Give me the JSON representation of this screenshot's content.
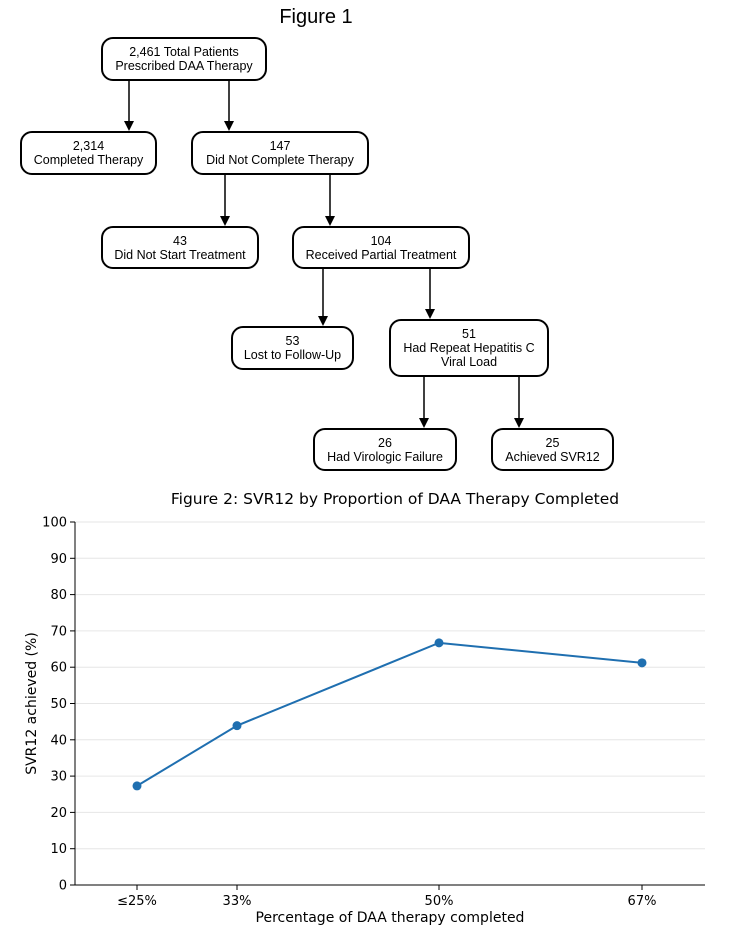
{
  "figure1": {
    "title": "Figure 1",
    "nodes": [
      {
        "id": "total",
        "count": "2,461",
        "label": "Total Patients Prescribed DAA Therapy",
        "lines": [
          "2,461 Total Patients",
          "Prescribed DAA Therapy"
        ]
      },
      {
        "id": "completed",
        "count": "2,314",
        "label": "Completed Therapy",
        "lines": [
          "2,314",
          "Completed Therapy"
        ]
      },
      {
        "id": "not_completed",
        "count": "147",
        "label": "Did Not Complete Therapy",
        "lines": [
          "147",
          "Did Not Complete Therapy"
        ]
      },
      {
        "id": "not_started",
        "count": "43",
        "label": "Did Not Start Treatment",
        "lines": [
          "43",
          "Did Not Start Treatment"
        ]
      },
      {
        "id": "partial",
        "count": "104",
        "label": "Received Partial Treatment",
        "lines": [
          "104",
          "Received Partial Treatment"
        ]
      },
      {
        "id": "lost",
        "count": "53",
        "label": "Lost to Follow-Up",
        "lines": [
          "53",
          "Lost to Follow-Up"
        ]
      },
      {
        "id": "repeat",
        "count": "51",
        "label": "Had Repeat Hepatitis C Viral Load",
        "lines": [
          "51",
          "Had Repeat Hepatitis C",
          "Viral Load"
        ]
      },
      {
        "id": "failure",
        "count": "26",
        "label": "Had Virologic Failure",
        "lines": [
          "26",
          "Had Virologic Failure"
        ]
      },
      {
        "id": "svr",
        "count": "25",
        "label": "Achieved SVR12",
        "lines": [
          "25",
          "Achieved SVR12"
        ]
      }
    ],
    "edges": [
      {
        "from": "total",
        "to": "completed"
      },
      {
        "from": "total",
        "to": "not_completed"
      },
      {
        "from": "not_completed",
        "to": "not_started"
      },
      {
        "from": "not_completed",
        "to": "partial"
      },
      {
        "from": "partial",
        "to": "lost"
      },
      {
        "from": "partial",
        "to": "repeat"
      },
      {
        "from": "repeat",
        "to": "failure"
      },
      {
        "from": "repeat",
        "to": "svr"
      }
    ]
  },
  "chart_data": {
    "type": "line",
    "title": "Figure 2: SVR12 by Proportion of DAA Therapy Completed",
    "xlabel": "Percentage of DAA therapy completed",
    "ylabel": "SVR12 achieved (%)",
    "x": [
      25,
      33,
      50,
      67
    ],
    "x_tick_labels": [
      "≤25%",
      "33%",
      "50%",
      "67%"
    ],
    "series": [
      {
        "values": [
          27.3,
          43.9,
          66.7,
          61.2
        ],
        "color": "#1f6fb0"
      }
    ],
    "ylim": [
      0,
      100
    ],
    "y_ticks": [
      0,
      10,
      20,
      30,
      40,
      50,
      60,
      70,
      80,
      90,
      100
    ],
    "grid": "horizontal",
    "legend": "none"
  }
}
